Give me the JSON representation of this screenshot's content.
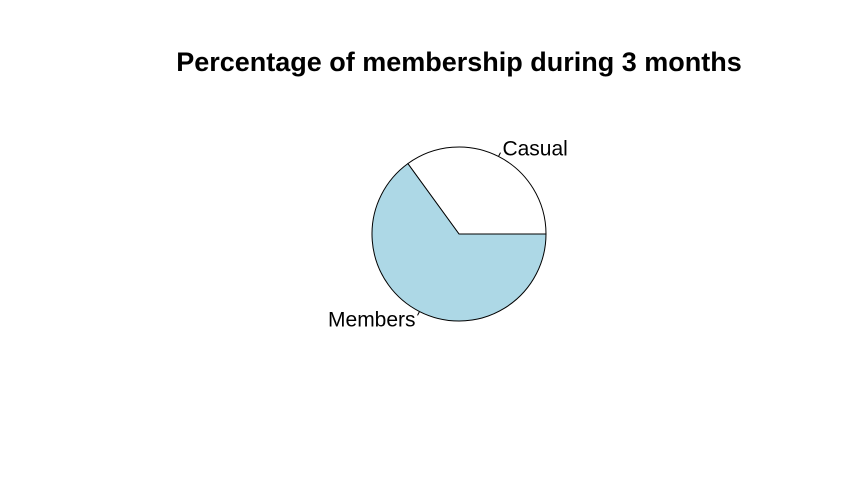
{
  "chart_data": {
    "type": "pie",
    "title": "Percentage of membership during 3 months",
    "slices": [
      {
        "label": "Casual",
        "value": 35,
        "color": "#ffffff"
      },
      {
        "label": "Members",
        "value": 65,
        "color": "#add8e6"
      }
    ],
    "start_angle_deg": 0,
    "direction": "counterclockwise"
  }
}
